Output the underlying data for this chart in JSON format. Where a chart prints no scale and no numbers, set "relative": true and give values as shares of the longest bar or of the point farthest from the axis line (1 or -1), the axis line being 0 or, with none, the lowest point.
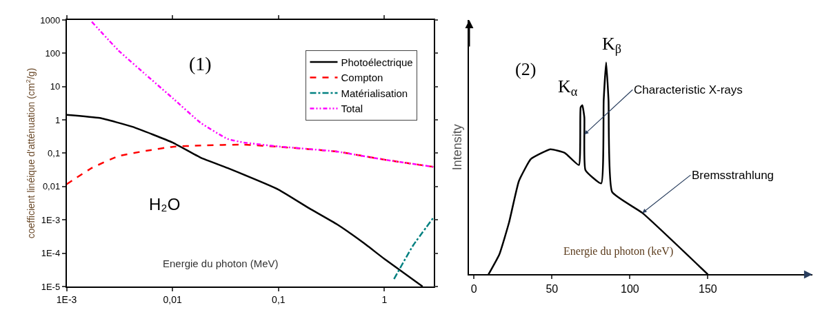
{
  "chart_data": [
    {
      "type": "line",
      "log": "xy",
      "xlabel": "Energie du photon (MeV)",
      "ylabel": "coefficient linéique d'atténuation (cm$^{2}$/g)",
      "xlim": [
        0.001,
        2.9
      ],
      "ylim": [
        1e-05,
        1000
      ],
      "xticks": [
        {
          "value": 0.001,
          "label": "1E-3"
        },
        {
          "value": 0.01,
          "label": "0,01"
        },
        {
          "value": 0.1,
          "label": "0,1"
        },
        1
      ],
      "yticks": [
        {
          "value": 1e-05,
          "label": "1E-5"
        },
        {
          "value": 0.0001,
          "label": "1E-4"
        },
        {
          "value": 0.001,
          "label": "1E-3"
        },
        {
          "value": 0.01,
          "label": "0,01"
        },
        {
          "value": 0.1,
          "label": "0,1"
        },
        1,
        10,
        100,
        1000
      ],
      "legend": "top right",
      "marker": "none",
      "annotations": [
        "(1)",
        "H₂O"
      ],
      "series": [
        {
          "name": "Photoélectrique",
          "color": "#000000",
          "line_style": "solid",
          "x": [
            0.001,
            0.00206,
            0.0042,
            0.01,
            0.0184,
            0.033,
            0.1,
            0.196,
            0.355,
            0.64,
            1,
            2.29
          ],
          "values": [
            1.42,
            1.14,
            0.62,
            0.21,
            0.074,
            0.036,
            0.0081,
            0.0022,
            0.00074,
            0.0002,
            6.7e-05,
            1e-05
          ]
        },
        {
          "name": "Compton",
          "color": "#ff0000",
          "line_style": "dashed",
          "x": [
            0.001,
            0.00173,
            0.0031,
            0.0056,
            0.01,
            0.0184,
            0.047,
            0.1,
            0.355,
            1,
            2.9
          ],
          "values": [
            0.0117,
            0.036,
            0.082,
            0.118,
            0.156,
            0.171,
            0.181,
            0.156,
            0.112,
            0.064,
            0.039
          ]
        },
        {
          "name": "Matérialisation",
          "color": "#008080",
          "line_style": "dashdot",
          "x": [
            1.23,
            1.86,
            2.9
          ],
          "values": [
            1.68e-05,
            0.00017,
            0.00117
          ]
        },
        {
          "name": "Total",
          "color": "#ff00ff",
          "line_style": "dashdotdot",
          "x": [
            0.00173,
            0.0031,
            0.0056,
            0.0102,
            0.0184,
            0.033,
            0.047,
            0.1,
            0.355,
            1,
            2.9
          ],
          "values": [
            879,
            120,
            22.7,
            4.3,
            0.82,
            0.27,
            0.21,
            0.16,
            0.112,
            0.064,
            0.039
          ]
        }
      ]
    },
    {
      "type": "line",
      "relative": true,
      "xlabel": "Energie du photon (keV)",
      "ylabel": "Intensity",
      "xlim": [
        -3,
        217
      ],
      "xticks": [
        0,
        50,
        100,
        150
      ],
      "legend": false,
      "marker": "none",
      "annotations": [
        "(2)",
        {
          "text": "K$_{α}$",
          "x": 69.5,
          "y": 0.798
        },
        {
          "text": "K$_{β}$",
          "x": 84.8,
          "y": 1
        },
        {
          "text": "Characteristic X-rays",
          "x": 70.8,
          "y": 0.66
        },
        {
          "text": "Bremsstrahlung",
          "x": 108,
          "y": 0.29
        }
      ],
      "series": [
        {
          "color": "#000000",
          "line_style": "solid",
          "x": [
            9.3,
            16.3,
            22.5,
            28.8,
            36.5,
            49,
            58.3,
            67.3,
            68.4,
            69.5,
            70.8,
            71.5,
            81.6,
            83.2,
            84.8,
            86.3,
            88.6,
            108,
            150
          ],
          "values": [
            0,
            0.095,
            0.245,
            0.44,
            0.544,
            0.59,
            0.573,
            0.516,
            0.787,
            0.798,
            0.74,
            0.492,
            0.429,
            0.821,
            1,
            0.821,
            0.389,
            0.29,
            0
          ]
        }
      ]
    }
  ]
}
